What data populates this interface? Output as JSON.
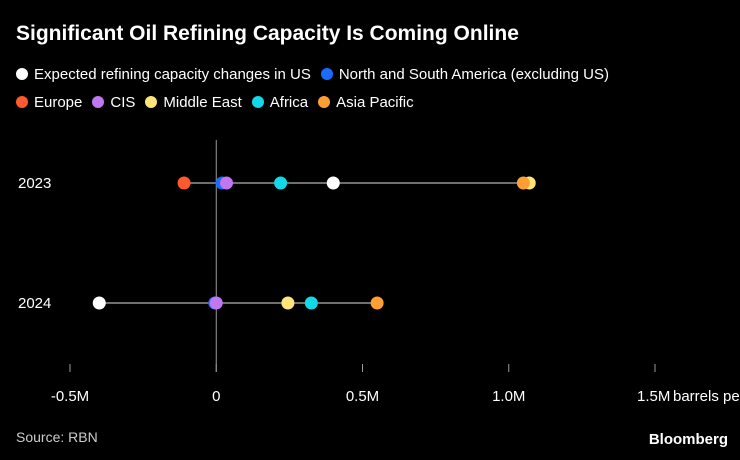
{
  "title": "Significant Oil Refining Capacity Is Coming Online",
  "source": "Source: RBN",
  "brand": "Bloomberg",
  "colors": {
    "background": "#000000",
    "text": "#ffffff",
    "axis": "#9a9a9a",
    "range_line": "#6f6f6f"
  },
  "chart_data": {
    "type": "scatter",
    "subtype": "dot-range",
    "title": "Significant Oil Refining Capacity Is Coming Online",
    "xlabel": "barrels per day",
    "ylabel": "",
    "xlim": [
      -500000,
      1500000
    ],
    "x_ticks": [
      {
        "value": -500000,
        "label": "-0.5M"
      },
      {
        "value": 0,
        "label": "0"
      },
      {
        "value": 500000,
        "label": "0.5M"
      },
      {
        "value": 1000000,
        "label": "1.0M"
      },
      {
        "value": 1500000,
        "label": "1.5M"
      }
    ],
    "x_unit_label": "barrels per day",
    "categories": [
      "2023",
      "2024"
    ],
    "legend_position": "top",
    "grid": false,
    "series": [
      {
        "name": "Expected refining capacity changes in US",
        "color": "#ffffff",
        "values": [
          400000,
          -400000
        ]
      },
      {
        "name": "North and South America (excluding US)",
        "color": "#1a6cff",
        "values": [
          20000,
          -5000
        ]
      },
      {
        "name": "Europe",
        "color": "#ff5a2e",
        "values": [
          -110000,
          null
        ]
      },
      {
        "name": "CIS",
        "color": "#c277f2",
        "values": [
          35000,
          0
        ]
      },
      {
        "name": "Middle East",
        "color": "#ffe577",
        "values": [
          1070000,
          245000
        ]
      },
      {
        "name": "Africa",
        "color": "#11d9e9",
        "values": [
          220000,
          325000
        ]
      },
      {
        "name": "Asia Pacific",
        "color": "#ff9f33",
        "values": [
          1050000,
          550000
        ]
      }
    ]
  }
}
